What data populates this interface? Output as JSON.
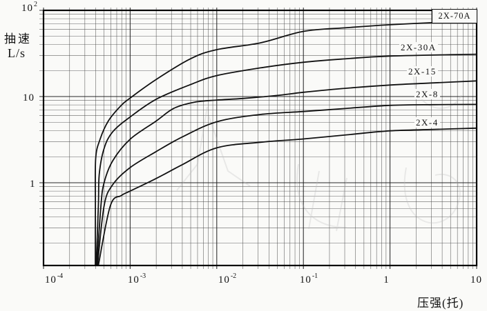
{
  "y_axis": {
    "quantity": "抽速",
    "unit": "L/s",
    "ticks": [
      {
        "base": "10",
        "sup": "2"
      },
      {
        "base": "10",
        "sup": ""
      },
      {
        "base": "1",
        "sup": ""
      }
    ]
  },
  "x_axis": {
    "title": "压强(托)",
    "ticks": [
      {
        "base": "10",
        "sup": "-4"
      },
      {
        "base": "10",
        "sup": "-3"
      },
      {
        "base": "10",
        "sup": "-2"
      },
      {
        "base": "10",
        "sup": "-1"
      },
      {
        "base": "1",
        "sup": ""
      },
      {
        "base": "10",
        "sup": ""
      }
    ]
  },
  "colors": {
    "background": "#fafaf8",
    "curve": "#111111",
    "grid_major": "#1c1c1c",
    "grid_minor": "#4a4a4a",
    "border": "#000000",
    "text": "#131313",
    "watermark": "#bdbdbd"
  },
  "chart_data": {
    "type": "line",
    "title": "",
    "xlabel": "压强(托)",
    "ylabel": "抽速 L/s",
    "x_scale": "log",
    "y_scale": "log",
    "xlim": [
      0.0001,
      10
    ],
    "ylim": [
      0.11,
      100
    ],
    "grid": "log-log major and minor gridlines",
    "legend_position": "labels at right end of each curve",
    "series": [
      {
        "name": "2X-70A",
        "points": [
          [
            0.000396,
            0.11
          ],
          [
            0.000397,
            0.54
          ],
          [
            0.0004,
            1.9
          ],
          [
            0.00045,
            3.2
          ],
          [
            0.00056,
            5.2
          ],
          [
            0.00079,
            7.9
          ],
          [
            0.001,
            9.6
          ],
          [
            0.002,
            15.8
          ],
          [
            0.005,
            27.5
          ],
          [
            0.01,
            35
          ],
          [
            0.032,
            42
          ],
          [
            0.1,
            57
          ],
          [
            0.32,
            63
          ],
          [
            1.0,
            68
          ],
          [
            3.2,
            72
          ],
          [
            10,
            75
          ]
        ]
      },
      {
        "name": "2X-30A",
        "points": [
          [
            0.000405,
            0.11
          ],
          [
            0.00043,
            0.54
          ],
          [
            0.00044,
            1.26
          ],
          [
            0.0005,
            2.5
          ],
          [
            0.00063,
            3.9
          ],
          [
            0.001,
            5.8
          ],
          [
            0.002,
            9.3
          ],
          [
            0.005,
            13.8
          ],
          [
            0.01,
            17.5
          ],
          [
            0.032,
            21.5
          ],
          [
            0.1,
            25
          ],
          [
            0.32,
            27.5
          ],
          [
            1.0,
            29.5
          ],
          [
            10,
            31
          ]
        ]
      },
      {
        "name": "2X-15",
        "points": [
          [
            0.000413,
            0.11
          ],
          [
            0.00046,
            0.54
          ],
          [
            0.0005,
            1.0
          ],
          [
            0.00063,
            1.8
          ],
          [
            0.001,
            3.2
          ],
          [
            0.002,
            5.2
          ],
          [
            0.0032,
            7.3
          ],
          [
            0.0055,
            8.6
          ],
          [
            0.01,
            9.1
          ],
          [
            0.02,
            9.5
          ],
          [
            0.05,
            10.3
          ],
          [
            0.1,
            11.2
          ],
          [
            0.32,
            12.5
          ],
          [
            1.0,
            13.6
          ],
          [
            3.2,
            14.4
          ],
          [
            10,
            15.2
          ]
        ]
      },
      {
        "name": "2X-8",
        "points": [
          [
            0.00042,
            0.11
          ],
          [
            0.0005,
            0.54
          ],
          [
            0.00063,
            0.95
          ],
          [
            0.001,
            1.5
          ],
          [
            0.002,
            2.3
          ],
          [
            0.004,
            3.4
          ],
          [
            0.01,
            5.1
          ],
          [
            0.032,
            6.2
          ],
          [
            0.1,
            6.7
          ],
          [
            0.32,
            7.3
          ],
          [
            1.0,
            7.9
          ],
          [
            3.2,
            8.05
          ],
          [
            10,
            8.1
          ]
        ]
      },
      {
        "name": "2X-4",
        "points": [
          [
            0.00043,
            0.11
          ],
          [
            0.00059,
            0.54
          ],
          [
            0.00079,
            0.71
          ],
          [
            0.001,
            0.8
          ],
          [
            0.002,
            1.12
          ],
          [
            0.004,
            1.62
          ],
          [
            0.01,
            2.54
          ],
          [
            0.032,
            2.95
          ],
          [
            0.1,
            3.22
          ],
          [
            0.32,
            3.6
          ],
          [
            1.0,
            4.0
          ],
          [
            3.2,
            4.15
          ],
          [
            10,
            4.3
          ]
        ]
      }
    ]
  }
}
